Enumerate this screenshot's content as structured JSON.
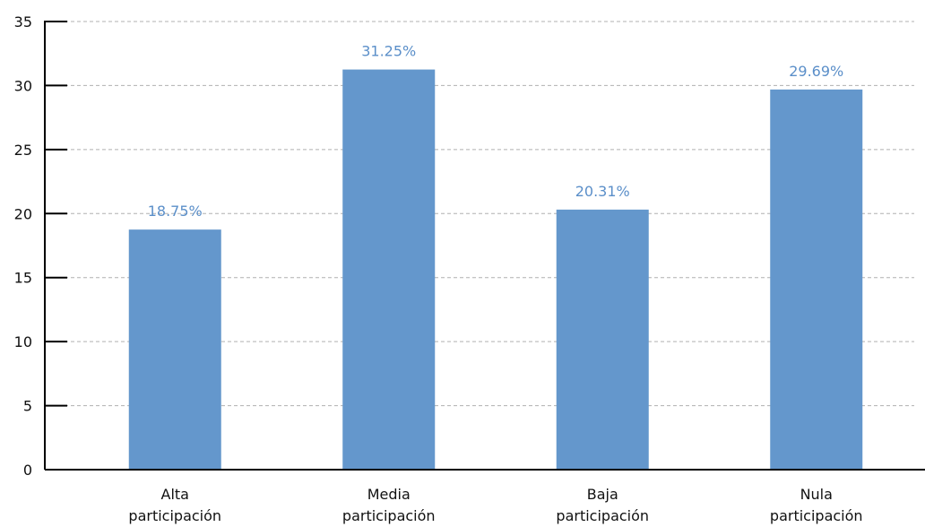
{
  "chart_data": {
    "type": "bar",
    "title": "",
    "xlabel": "",
    "ylabel": "",
    "categories": [
      [
        "Alta",
        "participación"
      ],
      [
        "Media",
        "participación"
      ],
      [
        "Baja",
        "participación"
      ],
      [
        "Nula",
        "participación"
      ]
    ],
    "values": [
      18.75,
      31.25,
      20.31,
      29.69
    ],
    "data_labels": [
      "18.75%",
      "31.25%",
      "20.31%",
      "29.69%"
    ],
    "ylim": [
      0,
      35
    ],
    "yticks": [
      0,
      5,
      10,
      15,
      20,
      25,
      30,
      35
    ],
    "grid": true,
    "legend": "none",
    "colors": {
      "bar": "#6497cc",
      "data_label": "#5b8fc9",
      "grid": "#b0b0b0",
      "axis": "#000000"
    }
  }
}
